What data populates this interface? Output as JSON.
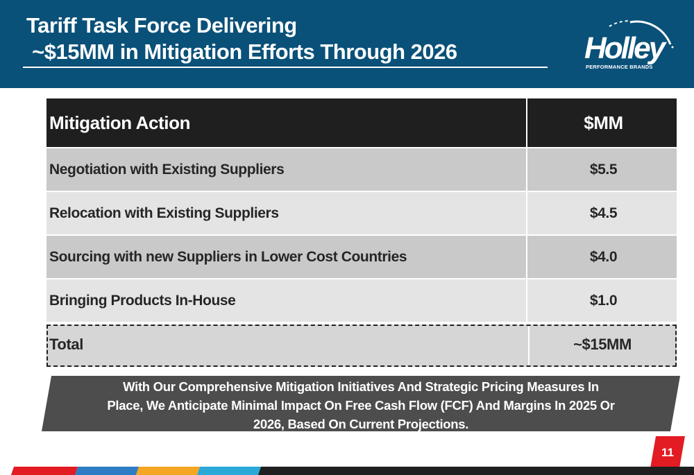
{
  "header": {
    "title_line1": "Tariff Task Force Delivering",
    "title_line2": " ~$15MM in Mitigation Efforts Through 2026",
    "background_color": "#0a5179"
  },
  "logo": {
    "wordmark": "Holley",
    "tagline": "PERFORMANCE BRANDS"
  },
  "table": {
    "headers": [
      "Mitigation Action",
      "$MM"
    ],
    "rows": [
      {
        "action": "Negotiation with Existing Suppliers",
        "value": "$5.5"
      },
      {
        "action": "Relocation with Existing Suppliers",
        "value": "$4.5"
      },
      {
        "action": "Sourcing with new Suppliers in Lower Cost Countries",
        "value": "$4.0"
      },
      {
        "action": "Bringing Products In-House",
        "value": "$1.0"
      }
    ],
    "total": {
      "label": "Total",
      "value": "~$15MM"
    }
  },
  "banner": {
    "text": "With Our Comprehensive Mitigation Initiatives And Strategic Pricing Measures In Place, We Anticipate Minimal Impact On Free Cash Flow (FCF) And Margins In 2025 Or 2026, Based On Current Projections."
  },
  "page_number": "11",
  "colors": {
    "header_blue": "#0a5179",
    "table_header": "#1f1f1f",
    "row_dark": "#c9c9c9",
    "row_light": "#e4e4e4",
    "banner": "#4d4d4d",
    "accent_red": "#e31b23",
    "footer_stripes": [
      "#e31b23",
      "#2e7cc4",
      "#f5a623",
      "#2aa8d8",
      "#1f1f1f"
    ]
  }
}
